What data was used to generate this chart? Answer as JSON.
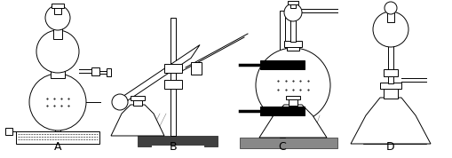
{
  "background_color": "#ffffff",
  "line_color": "#000000",
  "labels": [
    "A",
    "B",
    "C",
    "D"
  ],
  "figsize": [
    5.09,
    1.78
  ],
  "dpi": 100,
  "xlim": [
    0,
    509
  ],
  "ylim": [
    0,
    178
  ]
}
